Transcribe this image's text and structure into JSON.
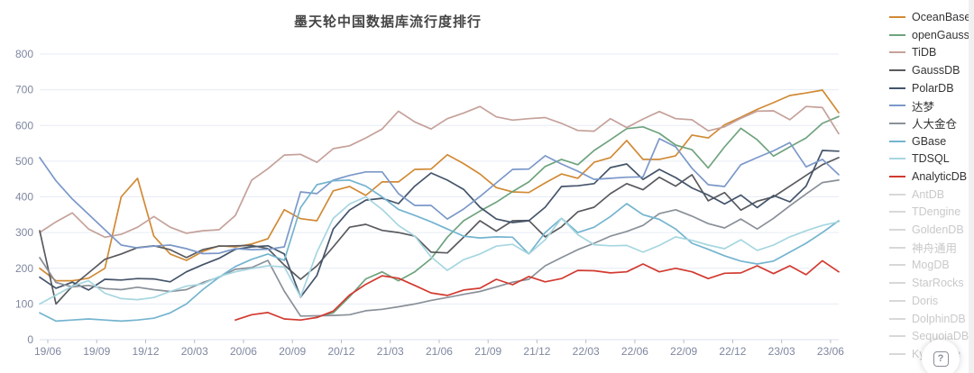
{
  "title": "墨天轮中国数据库流行度排行",
  "help_button": {
    "label": "?"
  },
  "colors": {
    "grid": "#e6ecf5",
    "axis_line": "#d9dfe9",
    "tick": "#b4bccd",
    "axis_text": "#7f87a0",
    "legend_active_text": "#333333",
    "legend_disabled_text": "#c9c9c9",
    "legend_disabled_line": "#d8d8d8"
  },
  "chart_data": {
    "type": "line",
    "title": "墨天轮中国数据库流行度排行",
    "xlabel": "",
    "ylabel": "",
    "ylim": [
      0,
      800
    ],
    "ytick_step": 100,
    "grid": true,
    "legend_position": "right",
    "x_labels": [
      "19/06",
      "19/09",
      "19/12",
      "20/03",
      "20/06",
      "20/09",
      "20/12",
      "21/03",
      "21/06",
      "21/09",
      "21/12",
      "22/03",
      "22/06",
      "22/09",
      "22/12",
      "23/03",
      "23/06"
    ],
    "tick_every": 3,
    "months": [
      "19/06",
      "19/07",
      "19/08",
      "19/09",
      "19/10",
      "19/11",
      "19/12",
      "20/01",
      "20/02",
      "20/03",
      "20/04",
      "20/05",
      "20/06",
      "20/07",
      "20/08",
      "20/09",
      "20/10",
      "20/11",
      "20/12",
      "21/01",
      "21/02",
      "21/03",
      "21/04",
      "21/05",
      "21/06",
      "21/07",
      "21/08",
      "21/09",
      "21/10",
      "21/11",
      "21/12",
      "22/01",
      "22/02",
      "22/03",
      "22/04",
      "22/05",
      "22/06",
      "22/07",
      "22/08",
      "22/09",
      "22/10",
      "22/11",
      "22/12",
      "23/01",
      "23/02",
      "23/03",
      "23/04",
      "23/05",
      "23/06",
      "23/07"
    ],
    "series": [
      {
        "name": "OceanBase",
        "color": "#d18a35",
        "active": true,
        "values": [
          200,
          165,
          165,
          172,
          200,
          400,
          452,
          290,
          240,
          222,
          247,
          263,
          260,
          268,
          283,
          364,
          339,
          333,
          417,
          429,
          404,
          442,
          442,
          477,
          478,
          518,
          493,
          464,
          426,
          414,
          412,
          439,
          464,
          452,
          497,
          510,
          558,
          505,
          505,
          515,
          573,
          565,
          602,
          623,
          645,
          664,
          684,
          691,
          699,
          636
        ]
      },
      {
        "name": "openGauss",
        "color": "#6fa37e",
        "active": true,
        "values": [
          null,
          null,
          null,
          null,
          null,
          null,
          null,
          null,
          null,
          null,
          null,
          null,
          null,
          null,
          null,
          null,
          null,
          64,
          75,
          120,
          170,
          190,
          165,
          190,
          227,
          287,
          333,
          360,
          385,
          415,
          442,
          485,
          505,
          490,
          530,
          560,
          591,
          596,
          578,
          545,
          532,
          481,
          540,
          592,
          560,
          514,
          540,
          565,
          606,
          625
        ]
      },
      {
        "name": "TiDB",
        "color": "#c5a19a",
        "active": true,
        "values": [
          300,
          330,
          355,
          310,
          287,
          295,
          315,
          345,
          315,
          298,
          305,
          308,
          348,
          447,
          479,
          517,
          519,
          497,
          535,
          543,
          565,
          590,
          640,
          610,
          590,
          619,
          635,
          653,
          624,
          615,
          619,
          622,
          606,
          586,
          584,
          619,
          594,
          618,
          639,
          619,
          616,
          585,
          596,
          620,
          640,
          641,
          616,
          653,
          650,
          577
        ]
      },
      {
        "name": "GaussDB",
        "color": "#595a5f",
        "active": true,
        "values": [
          305,
          100,
          150,
          187,
          225,
          240,
          258,
          263,
          252,
          230,
          252,
          262,
          263,
          264,
          255,
          209,
          169,
          207,
          260,
          315,
          323,
          306,
          300,
          290,
          245,
          243,
          287,
          333,
          304,
          333,
          334,
          288,
          316,
          358,
          371,
          409,
          437,
          420,
          455,
          430,
          462,
          389,
          412,
          363,
          388,
          400,
          430,
          460,
          490,
          510
        ]
      },
      {
        "name": "PolarDB",
        "color": "#44546a",
        "active": true,
        "values": [
          175,
          144,
          161,
          139,
          169,
          167,
          171,
          170,
          162,
          190,
          210,
          228,
          253,
          260,
          263,
          240,
          119,
          180,
          310,
          363,
          391,
          396,
          381,
          430,
          467,
          447,
          421,
          371,
          338,
          328,
          333,
          371,
          429,
          431,
          437,
          482,
          492,
          449,
          477,
          454,
          425,
          405,
          380,
          405,
          370,
          404,
          386,
          430,
          530,
          528
        ]
      },
      {
        "name": "达梦",
        "color": "#7b98c9",
        "active": true,
        "values": [
          510,
          445,
          394,
          351,
          308,
          265,
          257,
          262,
          265,
          255,
          241,
          242,
          255,
          252,
          253,
          260,
          414,
          409,
          447,
          460,
          470,
          470,
          409,
          376,
          376,
          338,
          366,
          401,
          439,
          477,
          478,
          515,
          492,
          472,
          449,
          452,
          455,
          456,
          563,
          540,
          480,
          434,
          429,
          490,
          510,
          529,
          552,
          484,
          505,
          462
        ]
      },
      {
        "name": "人大金仓",
        "color": "#8a9099",
        "active": true,
        "values": [
          230,
          160,
          148,
          152,
          143,
          140,
          147,
          140,
          135,
          140,
          160,
          175,
          197,
          202,
          222,
          136,
          66,
          67,
          68,
          70,
          81,
          85,
          92,
          100,
          110,
          118,
          127,
          135,
          148,
          161,
          169,
          207,
          230,
          252,
          270,
          290,
          303,
          320,
          353,
          364,
          346,
          325,
          313,
          338,
          310,
          340,
          375,
          408,
          440,
          447
        ]
      },
      {
        "name": "GBase",
        "color": "#74b4cf",
        "active": true,
        "values": [
          75,
          52,
          55,
          58,
          55,
          52,
          55,
          60,
          75,
          100,
          140,
          175,
          205,
          225,
          240,
          222,
          370,
          434,
          445,
          447,
          430,
          400,
          365,
          348,
          330,
          310,
          290,
          285,
          288,
          287,
          240,
          300,
          340,
          300,
          315,
          345,
          381,
          350,
          337,
          310,
          270,
          253,
          235,
          220,
          212,
          220,
          245,
          270,
          300,
          333
        ]
      },
      {
        "name": "TDSQL",
        "color": "#a6d6e0",
        "active": true,
        "values": [
          100,
          125,
          150,
          165,
          130,
          115,
          112,
          118,
          135,
          150,
          156,
          177,
          190,
          199,
          207,
          204,
          120,
          245,
          340,
          380,
          400,
          365,
          320,
          290,
          232,
          194,
          224,
          240,
          262,
          267,
          240,
          280,
          340,
          294,
          266,
          263,
          264,
          245,
          264,
          288,
          278,
          265,
          255,
          280,
          250,
          265,
          288,
          305,
          320,
          330
        ]
      },
      {
        "name": "AnalyticDB",
        "color": "#d23a30",
        "active": true,
        "values": [
          null,
          null,
          null,
          null,
          null,
          null,
          null,
          null,
          null,
          null,
          null,
          null,
          55,
          70,
          76,
          58,
          55,
          62,
          80,
          125,
          155,
          179,
          172,
          152,
          131,
          124,
          139,
          144,
          169,
          154,
          177,
          162,
          171,
          194,
          193,
          187,
          190,
          212,
          190,
          200,
          190,
          171,
          186,
          187,
          207,
          185,
          207,
          182,
          221,
          190
        ]
      },
      {
        "name": "AntDB",
        "color": null,
        "active": false,
        "values": []
      },
      {
        "name": "TDengine",
        "color": null,
        "active": false,
        "values": []
      },
      {
        "name": "GoldenDB",
        "color": null,
        "active": false,
        "values": []
      },
      {
        "name": "神舟通用",
        "color": null,
        "active": false,
        "values": []
      },
      {
        "name": "MogDB",
        "color": null,
        "active": false,
        "values": []
      },
      {
        "name": "StarRocks",
        "color": null,
        "active": false,
        "values": []
      },
      {
        "name": "Doris",
        "color": null,
        "active": false,
        "values": []
      },
      {
        "name": "DolphinDB",
        "color": null,
        "active": false,
        "values": []
      },
      {
        "name": "SequoiaDB",
        "color": null,
        "active": false,
        "values": []
      },
      {
        "name": "Kyligence",
        "color": null,
        "active": false,
        "values": []
      }
    ]
  }
}
